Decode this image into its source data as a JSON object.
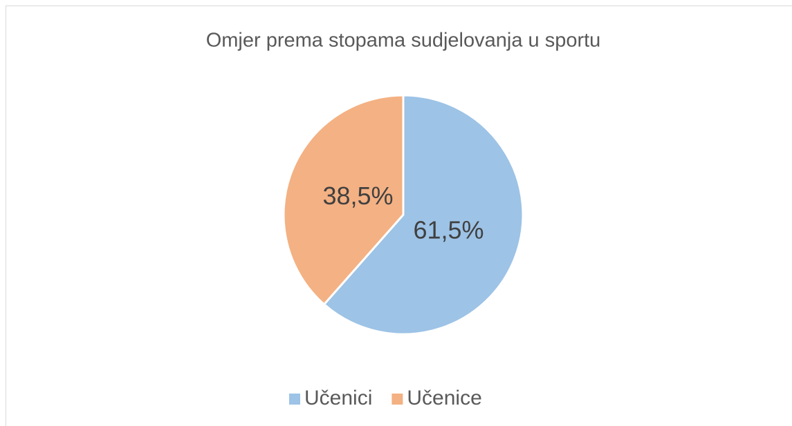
{
  "chart_data": {
    "type": "pie",
    "title": "Omjer prema stopama sudjelovanja u sportu",
    "categories": [
      "Učenici",
      "Učenice"
    ],
    "values": [
      61.5,
      38.5
    ],
    "value_labels": [
      "61,5%",
      "38,5%"
    ],
    "colors": [
      "#9dc3e6",
      "#f4b183"
    ],
    "legend": "bottom"
  }
}
